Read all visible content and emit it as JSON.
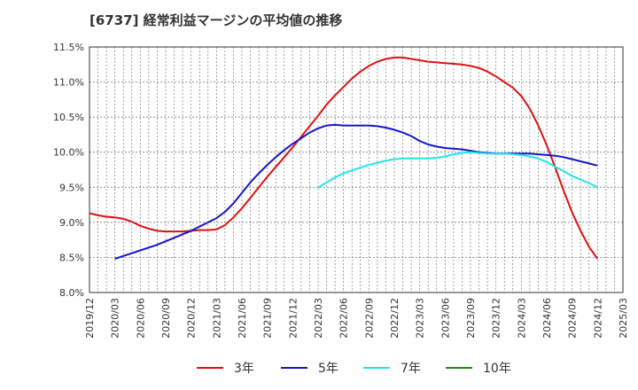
{
  "chart_data": {
    "type": "line",
    "title": "[6737]  経常利益マージンの平均値の推移",
    "xlabel": "",
    "ylabel": "",
    "ylim": [
      8.0,
      11.5
    ],
    "grid": true,
    "legend_position": "bottom",
    "y_ticks": [
      "8.0%",
      "8.5%",
      "9.0%",
      "9.5%",
      "10.0%",
      "10.5%",
      "11.0%",
      "11.5%"
    ],
    "x_ticks": [
      "2019/12",
      "2020/03",
      "2020/06",
      "2020/09",
      "2020/12",
      "2021/03",
      "2021/06",
      "2021/09",
      "2021/12",
      "2022/03",
      "2022/06",
      "2022/09",
      "2022/12",
      "2023/03",
      "2023/06",
      "2023/09",
      "2023/12",
      "2024/03",
      "2024/06",
      "2024/09",
      "2024/12",
      "2025/03"
    ],
    "series": [
      {
        "name": "3年",
        "color": "#dd1111",
        "x": [
          "2019/12",
          "2020/01",
          "2020/02",
          "2020/03",
          "2020/04",
          "2020/05",
          "2020/06",
          "2020/07",
          "2020/08",
          "2020/09",
          "2020/10",
          "2020/11",
          "2020/12",
          "2021/01",
          "2021/02",
          "2021/03",
          "2021/04",
          "2021/05",
          "2021/06",
          "2021/07",
          "2021/08",
          "2021/09",
          "2021/10",
          "2021/11",
          "2021/12",
          "2022/01",
          "2022/02",
          "2022/03",
          "2022/04",
          "2022/05",
          "2022/06",
          "2022/07",
          "2022/08",
          "2022/09",
          "2022/10",
          "2022/11",
          "2022/12",
          "2023/01",
          "2023/02",
          "2023/03",
          "2023/04",
          "2023/05",
          "2023/06",
          "2023/07",
          "2023/08",
          "2023/09",
          "2023/10",
          "2023/11",
          "2023/12",
          "2024/01",
          "2024/02",
          "2024/03",
          "2024/04",
          "2024/05",
          "2024/06",
          "2024/07",
          "2024/08",
          "2024/09",
          "2024/10",
          "2024/11",
          "2024/12"
        ],
        "values": [
          9.13,
          9.1,
          9.08,
          9.07,
          9.05,
          9.01,
          8.95,
          8.91,
          8.88,
          8.87,
          8.87,
          8.87,
          8.88,
          8.89,
          8.89,
          8.9,
          8.96,
          9.07,
          9.2,
          9.35,
          9.5,
          9.65,
          9.79,
          9.93,
          10.07,
          10.22,
          10.37,
          10.52,
          10.68,
          10.81,
          10.93,
          11.05,
          11.15,
          11.23,
          11.29,
          11.33,
          11.35,
          11.35,
          11.33,
          11.31,
          11.29,
          11.28,
          11.27,
          11.26,
          11.25,
          11.23,
          11.2,
          11.15,
          11.08,
          11.0,
          10.92,
          10.8,
          10.62,
          10.38,
          10.1,
          9.78,
          9.45,
          9.14,
          8.88,
          8.65,
          8.48
        ]
      },
      {
        "name": "5年",
        "color": "#1515c8",
        "x": [
          "2020/03",
          "2020/04",
          "2020/05",
          "2020/06",
          "2020/07",
          "2020/08",
          "2020/09",
          "2020/10",
          "2020/11",
          "2020/12",
          "2021/01",
          "2021/02",
          "2021/03",
          "2021/04",
          "2021/05",
          "2021/06",
          "2021/07",
          "2021/08",
          "2021/09",
          "2021/10",
          "2021/11",
          "2021/12",
          "2022/01",
          "2022/02",
          "2022/03",
          "2022/04",
          "2022/05",
          "2022/06",
          "2022/07",
          "2022/08",
          "2022/09",
          "2022/10",
          "2022/11",
          "2022/12",
          "2023/01",
          "2023/02",
          "2023/03",
          "2023/04",
          "2023/05",
          "2023/06",
          "2023/07",
          "2023/08",
          "2023/09",
          "2023/10",
          "2023/11",
          "2023/12",
          "2024/01",
          "2024/02",
          "2024/03",
          "2024/04",
          "2024/05",
          "2024/06",
          "2024/07",
          "2024/08",
          "2024/09",
          "2024/10",
          "2024/11",
          "2024/12"
        ],
        "values": [
          8.48,
          8.52,
          8.56,
          8.6,
          8.64,
          8.68,
          8.73,
          8.78,
          8.83,
          8.88,
          8.94,
          9.0,
          9.06,
          9.15,
          9.27,
          9.42,
          9.57,
          9.7,
          9.82,
          9.93,
          10.03,
          10.12,
          10.2,
          10.28,
          10.34,
          10.38,
          10.39,
          10.38,
          10.38,
          10.38,
          10.38,
          10.37,
          10.35,
          10.32,
          10.28,
          10.23,
          10.16,
          10.11,
          10.08,
          10.06,
          10.05,
          10.04,
          10.02,
          10.0,
          9.99,
          9.98,
          9.98,
          9.98,
          9.98,
          9.98,
          9.97,
          9.96,
          9.95,
          9.93,
          9.9,
          9.87,
          9.84,
          9.81
        ]
      },
      {
        "name": "7年",
        "color": "#22e5e5",
        "x": [
          "2022/03",
          "2022/04",
          "2022/05",
          "2022/06",
          "2022/07",
          "2022/08",
          "2022/09",
          "2022/10",
          "2022/11",
          "2022/12",
          "2023/01",
          "2023/02",
          "2023/03",
          "2023/04",
          "2023/05",
          "2023/06",
          "2023/07",
          "2023/08",
          "2023/09",
          "2023/10",
          "2023/11",
          "2023/12",
          "2024/01",
          "2024/02",
          "2024/03",
          "2024/04",
          "2024/05",
          "2024/06",
          "2024/07",
          "2024/08",
          "2024/09",
          "2024/10",
          "2024/11",
          "2024/12"
        ],
        "values": [
          9.49,
          9.57,
          9.64,
          9.7,
          9.74,
          9.78,
          9.82,
          9.85,
          9.88,
          9.9,
          9.91,
          9.91,
          9.91,
          9.91,
          9.92,
          9.94,
          9.97,
          9.99,
          10.0,
          9.99,
          9.98,
          9.98,
          9.98,
          9.97,
          9.96,
          9.94,
          9.91,
          9.86,
          9.79,
          9.73,
          9.66,
          9.61,
          9.56,
          9.5
        ]
      },
      {
        "name": "10年",
        "color": "#1f8c1f",
        "x": [],
        "values": []
      }
    ]
  }
}
